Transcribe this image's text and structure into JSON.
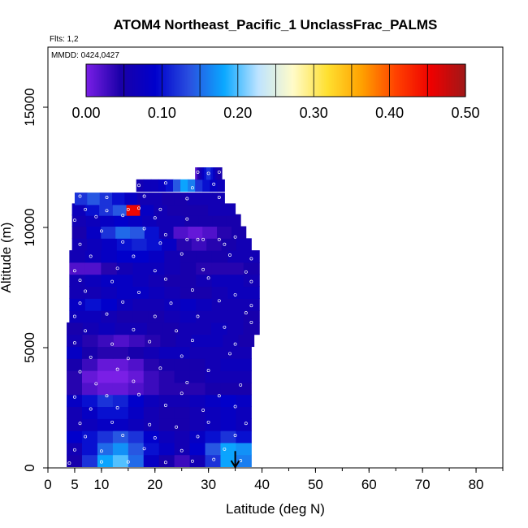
{
  "chart_data": {
    "type": "heatmap",
    "title": "ATOM4 Northeast_Pacific_1 UnclassFrac_PALMS",
    "flights_label": "Flts: 1,2",
    "dates_label": "MMDD: 0424,0427",
    "xlabel": "Latitude (deg N)",
    "ylabel": "Altitude (m)",
    "xlim": [
      0,
      85
    ],
    "ylim": [
      0,
      17500
    ],
    "x_ticks": [
      0,
      5,
      10,
      20,
      30,
      40,
      50,
      60,
      70,
      80
    ],
    "x_tick_labels": [
      "0",
      "5",
      "10",
      "20",
      "30",
      "40",
      "50",
      "60",
      "70",
      "80"
    ],
    "y_ticks": [
      0,
      5000,
      10000,
      15000
    ],
    "y_tick_labels": [
      "0",
      "5000",
      "10000",
      "15000"
    ],
    "colorbar": {
      "min": 0.0,
      "max": 0.5,
      "ticks": [
        0.0,
        0.1,
        0.2,
        0.3,
        0.4,
        0.5
      ],
      "tick_labels": [
        "0.00",
        "0.10",
        "0.20",
        "0.30",
        "0.40",
        "0.50"
      ],
      "colors": [
        "#7a1fe6",
        "#1a00a8",
        "#0000cc",
        "#2a50e0",
        "#0aa8ff",
        "#bfe4ff",
        "#fffbc8",
        "#ffe030",
        "#ffa000",
        "#ff4000",
        "#ee0000",
        "#a01818"
      ]
    },
    "rows": [
      {
        "alt": 300,
        "x0": 3.5,
        "x1": 38,
        "values": [
          0.05,
          0.12,
          0.18,
          0.2,
          0.15,
          0.08,
          0.05,
          0.03,
          0.06,
          0.12,
          0.18,
          0.16
        ]
      },
      {
        "alt": 800,
        "x0": 3.5,
        "x1": 38,
        "values": [
          0.06,
          0.1,
          0.15,
          0.17,
          0.14,
          0.1,
          0.08,
          0.06,
          0.09,
          0.14,
          0.18,
          0.17
        ]
      },
      {
        "alt": 1300,
        "x0": 3.5,
        "x1": 38,
        "values": [
          0.09,
          0.1,
          0.12,
          0.14,
          0.12,
          0.09,
          0.07,
          0.06,
          0.08,
          0.1,
          0.12,
          0.1
        ]
      },
      {
        "alt": 1800,
        "x0": 3.5,
        "x1": 38,
        "values": [
          0.06,
          0.07,
          0.08,
          0.08,
          0.07,
          0.06,
          0.05,
          0.05,
          0.06,
          0.07,
          0.08,
          0.07
        ]
      },
      {
        "alt": 2300,
        "x0": 3.5,
        "x1": 38,
        "values": [
          0.06,
          0.08,
          0.1,
          0.1,
          0.08,
          0.06,
          0.05,
          0.05,
          0.06,
          0.07,
          0.08,
          0.07
        ]
      },
      {
        "alt": 2800,
        "x0": 3.5,
        "x1": 38,
        "values": [
          0.08,
          0.1,
          0.12,
          0.11,
          0.09,
          0.07,
          0.06,
          0.06,
          0.07,
          0.08,
          0.09,
          0.08
        ]
      },
      {
        "alt": 3300,
        "x0": 3.5,
        "x1": 38,
        "values": [
          0.04,
          0.02,
          0.01,
          0.01,
          0.02,
          0.03,
          0.04,
          0.04,
          0.04,
          0.05,
          0.05,
          0.05
        ]
      },
      {
        "alt": 3800,
        "x0": 3.5,
        "x1": 38,
        "values": [
          0.04,
          0.01,
          0.0,
          0.0,
          0.01,
          0.03,
          0.04,
          0.05,
          0.05,
          0.06,
          0.06,
          0.06
        ]
      },
      {
        "alt": 4300,
        "x0": 3.5,
        "x1": 38,
        "values": [
          0.05,
          0.03,
          0.01,
          0.01,
          0.02,
          0.04,
          0.05,
          0.05,
          0.05,
          0.06,
          0.07,
          0.07
        ]
      },
      {
        "alt": 4800,
        "x0": 3.5,
        "x1": 38,
        "values": [
          0.08,
          0.05,
          0.04,
          0.04,
          0.05,
          0.06,
          0.07,
          0.07,
          0.06,
          0.06,
          0.06,
          0.06
        ]
      },
      {
        "alt": 5300,
        "x0": 3.5,
        "x1": 38.5,
        "values": [
          0.06,
          0.04,
          0.03,
          0.02,
          0.03,
          0.04,
          0.05,
          0.06,
          0.07,
          0.07,
          0.06,
          0.05
        ]
      },
      {
        "alt": 5800,
        "x0": 3.5,
        "x1": 39.5,
        "values": [
          0.05,
          0.06,
          0.07,
          0.06,
          0.06,
          0.05,
          0.05,
          0.06,
          0.06,
          0.07,
          0.06,
          0.05
        ]
      },
      {
        "alt": 6300,
        "x0": 4,
        "x1": 39.5,
        "values": [
          0.07,
          0.07,
          0.06,
          0.05,
          0.05,
          0.05,
          0.06,
          0.07,
          0.06,
          0.06,
          0.06,
          0.05
        ]
      },
      {
        "alt": 6800,
        "x0": 4,
        "x1": 39.5,
        "values": [
          0.08,
          0.1,
          0.09,
          0.07,
          0.06,
          0.06,
          0.07,
          0.08,
          0.07,
          0.06,
          0.06,
          0.06
        ]
      },
      {
        "alt": 7300,
        "x0": 4,
        "x1": 39.5,
        "values": [
          0.06,
          0.06,
          0.07,
          0.08,
          0.08,
          0.07,
          0.06,
          0.05,
          0.05,
          0.06,
          0.07,
          0.07
        ]
      },
      {
        "alt": 7800,
        "x0": 4,
        "x1": 39.5,
        "values": [
          0.06,
          0.07,
          0.08,
          0.08,
          0.07,
          0.06,
          0.05,
          0.05,
          0.06,
          0.07,
          0.07,
          0.06
        ]
      },
      {
        "alt": 8300,
        "x0": 4,
        "x1": 39.5,
        "values": [
          0.02,
          0.02,
          0.04,
          0.06,
          0.07,
          0.07,
          0.06,
          0.05,
          0.04,
          0.04,
          0.04,
          0.05
        ]
      },
      {
        "alt": 8800,
        "x0": 4,
        "x1": 39.5,
        "values": [
          0.06,
          0.07,
          0.08,
          0.09,
          0.09,
          0.08,
          0.06,
          0.05,
          0.05,
          0.05,
          0.06,
          0.06
        ]
      },
      {
        "alt": 9300,
        "x0": 4.5,
        "x1": 38,
        "values": [
          0.06,
          0.07,
          0.08,
          0.1,
          0.11,
          0.1,
          0.08,
          0.04,
          0.03,
          0.04,
          0.05,
          0.06
        ]
      },
      {
        "alt": 9800,
        "x0": 4.5,
        "x1": 37,
        "values": [
          0.05,
          0.08,
          0.12,
          0.15,
          0.14,
          0.1,
          0.06,
          0.02,
          0.01,
          0.02,
          0.04,
          0.05
        ]
      },
      {
        "alt": 10300,
        "x0": 4.5,
        "x1": 36,
        "values": [
          0.06,
          0.07,
          0.08,
          0.09,
          0.08,
          0.07,
          0.06,
          0.06,
          0.05,
          0.05,
          0.05,
          0.05
        ]
      },
      {
        "alt": 10750,
        "x0": 4.5,
        "x1": 35,
        "values": [
          0.07,
          0.1,
          0.12,
          0.14,
          0.45,
          0.08,
          0.06,
          0.05,
          0.05,
          0.05,
          0.06,
          0.06
        ]
      },
      {
        "alt": 11200,
        "x0": 5,
        "x1": 33,
        "values": [
          0.12,
          0.14,
          0.12,
          0.1,
          0.08,
          0.06,
          0.06,
          0.05,
          0.05,
          0.06,
          0.06,
          0.06
        ]
      },
      {
        "alt": 11750,
        "x0": 16.5,
        "x1": 33,
        "values": [
          0.06,
          0.07,
          0.07,
          0.08,
          0.1,
          0.14,
          0.18,
          0.16,
          0.12,
          0.1,
          0.08,
          0.07
        ]
      },
      {
        "alt": 12250,
        "x0": 27.5,
        "x1": 32.5,
        "values": [
          0.02,
          0.04,
          0.06,
          0.08,
          0.1,
          0.12,
          0.12,
          0.1,
          0.08,
          0.06,
          0.05,
          0.05
        ]
      }
    ],
    "sample_points": [
      [
        4,
        200
      ],
      [
        10,
        250
      ],
      [
        15,
        250
      ],
      [
        22,
        230
      ],
      [
        27,
        280
      ],
      [
        31,
        350
      ],
      [
        36,
        300
      ],
      [
        5,
        750
      ],
      [
        10,
        700
      ],
      [
        18,
        800
      ],
      [
        25,
        720
      ],
      [
        33,
        780
      ],
      [
        7,
        1300
      ],
      [
        14,
        1350
      ],
      [
        20,
        1250
      ],
      [
        28,
        1300
      ],
      [
        35,
        1350
      ],
      [
        6,
        1850
      ],
      [
        12,
        1900
      ],
      [
        19,
        1800
      ],
      [
        24,
        1700
      ],
      [
        30,
        1900
      ],
      [
        37,
        1850
      ],
      [
        8,
        2450
      ],
      [
        13,
        2500
      ],
      [
        22,
        2600
      ],
      [
        29,
        2400
      ],
      [
        35,
        2550
      ],
      [
        5,
        2950
      ],
      [
        11,
        3000
      ],
      [
        17,
        3050
      ],
      [
        25,
        3100
      ],
      [
        32,
        3000
      ],
      [
        9,
        3500
      ],
      [
        16,
        3600
      ],
      [
        26,
        3550
      ],
      [
        36,
        3450
      ],
      [
        6,
        4000
      ],
      [
        13,
        4100
      ],
      [
        21,
        4150
      ],
      [
        30,
        4050
      ],
      [
        8,
        4600
      ],
      [
        15,
        4550
      ],
      [
        25,
        4650
      ],
      [
        34,
        4750
      ],
      [
        5,
        5200
      ],
      [
        12,
        5150
      ],
      [
        19,
        5250
      ],
      [
        27,
        5300
      ],
      [
        35,
        5150
      ],
      [
        39,
        5300
      ],
      [
        7,
        5700
      ],
      [
        16,
        5750
      ],
      [
        24,
        5700
      ],
      [
        33,
        5850
      ],
      [
        38,
        6050
      ],
      [
        5,
        6300
      ],
      [
        11,
        6400
      ],
      [
        20,
        6300
      ],
      [
        28,
        6300
      ],
      [
        37,
        6450
      ],
      [
        6,
        6850
      ],
      [
        14,
        6900
      ],
      [
        23,
        6850
      ],
      [
        32,
        6950
      ],
      [
        38,
        6750
      ],
      [
        7,
        7350
      ],
      [
        17,
        7300
      ],
      [
        27,
        7400
      ],
      [
        35,
        7200
      ],
      [
        6,
        7800
      ],
      [
        12,
        7750
      ],
      [
        22,
        7850
      ],
      [
        30,
        7900
      ],
      [
        38,
        7750
      ],
      [
        5,
        8200
      ],
      [
        13,
        8300
      ],
      [
        20,
        8200
      ],
      [
        29,
        8250
      ],
      [
        37,
        8150
      ],
      [
        8,
        8800
      ],
      [
        16,
        8800
      ],
      [
        25,
        8900
      ],
      [
        34,
        8850
      ],
      [
        38,
        8700
      ],
      [
        6,
        9300
      ],
      [
        14,
        9400
      ],
      [
        21,
        9350
      ],
      [
        28,
        9500
      ],
      [
        33,
        9300
      ],
      [
        10,
        9850
      ],
      [
        18,
        9950
      ],
      [
        22,
        9700
      ],
      [
        26,
        9500
      ],
      [
        29,
        9500
      ],
      [
        32,
        9500
      ],
      [
        35,
        9600
      ],
      [
        5,
        10300
      ],
      [
        9,
        10450
      ],
      [
        14,
        10500
      ],
      [
        20,
        10400
      ],
      [
        26,
        10350
      ],
      [
        7,
        10750
      ],
      [
        11,
        10700
      ],
      [
        15,
        10750
      ],
      [
        17,
        10800
      ],
      [
        21,
        10750
      ],
      [
        6,
        11300
      ],
      [
        11,
        11250
      ],
      [
        18,
        11300
      ],
      [
        26,
        11200
      ],
      [
        32,
        11250
      ],
      [
        17,
        11750
      ],
      [
        22,
        11850
      ],
      [
        27,
        11650
      ],
      [
        31,
        11800
      ],
      [
        28,
        12300
      ],
      [
        30,
        12250
      ],
      [
        32,
        12300
      ]
    ],
    "arrow": {
      "x": 35,
      "y_from": 700,
      "y_to": 0
    }
  }
}
